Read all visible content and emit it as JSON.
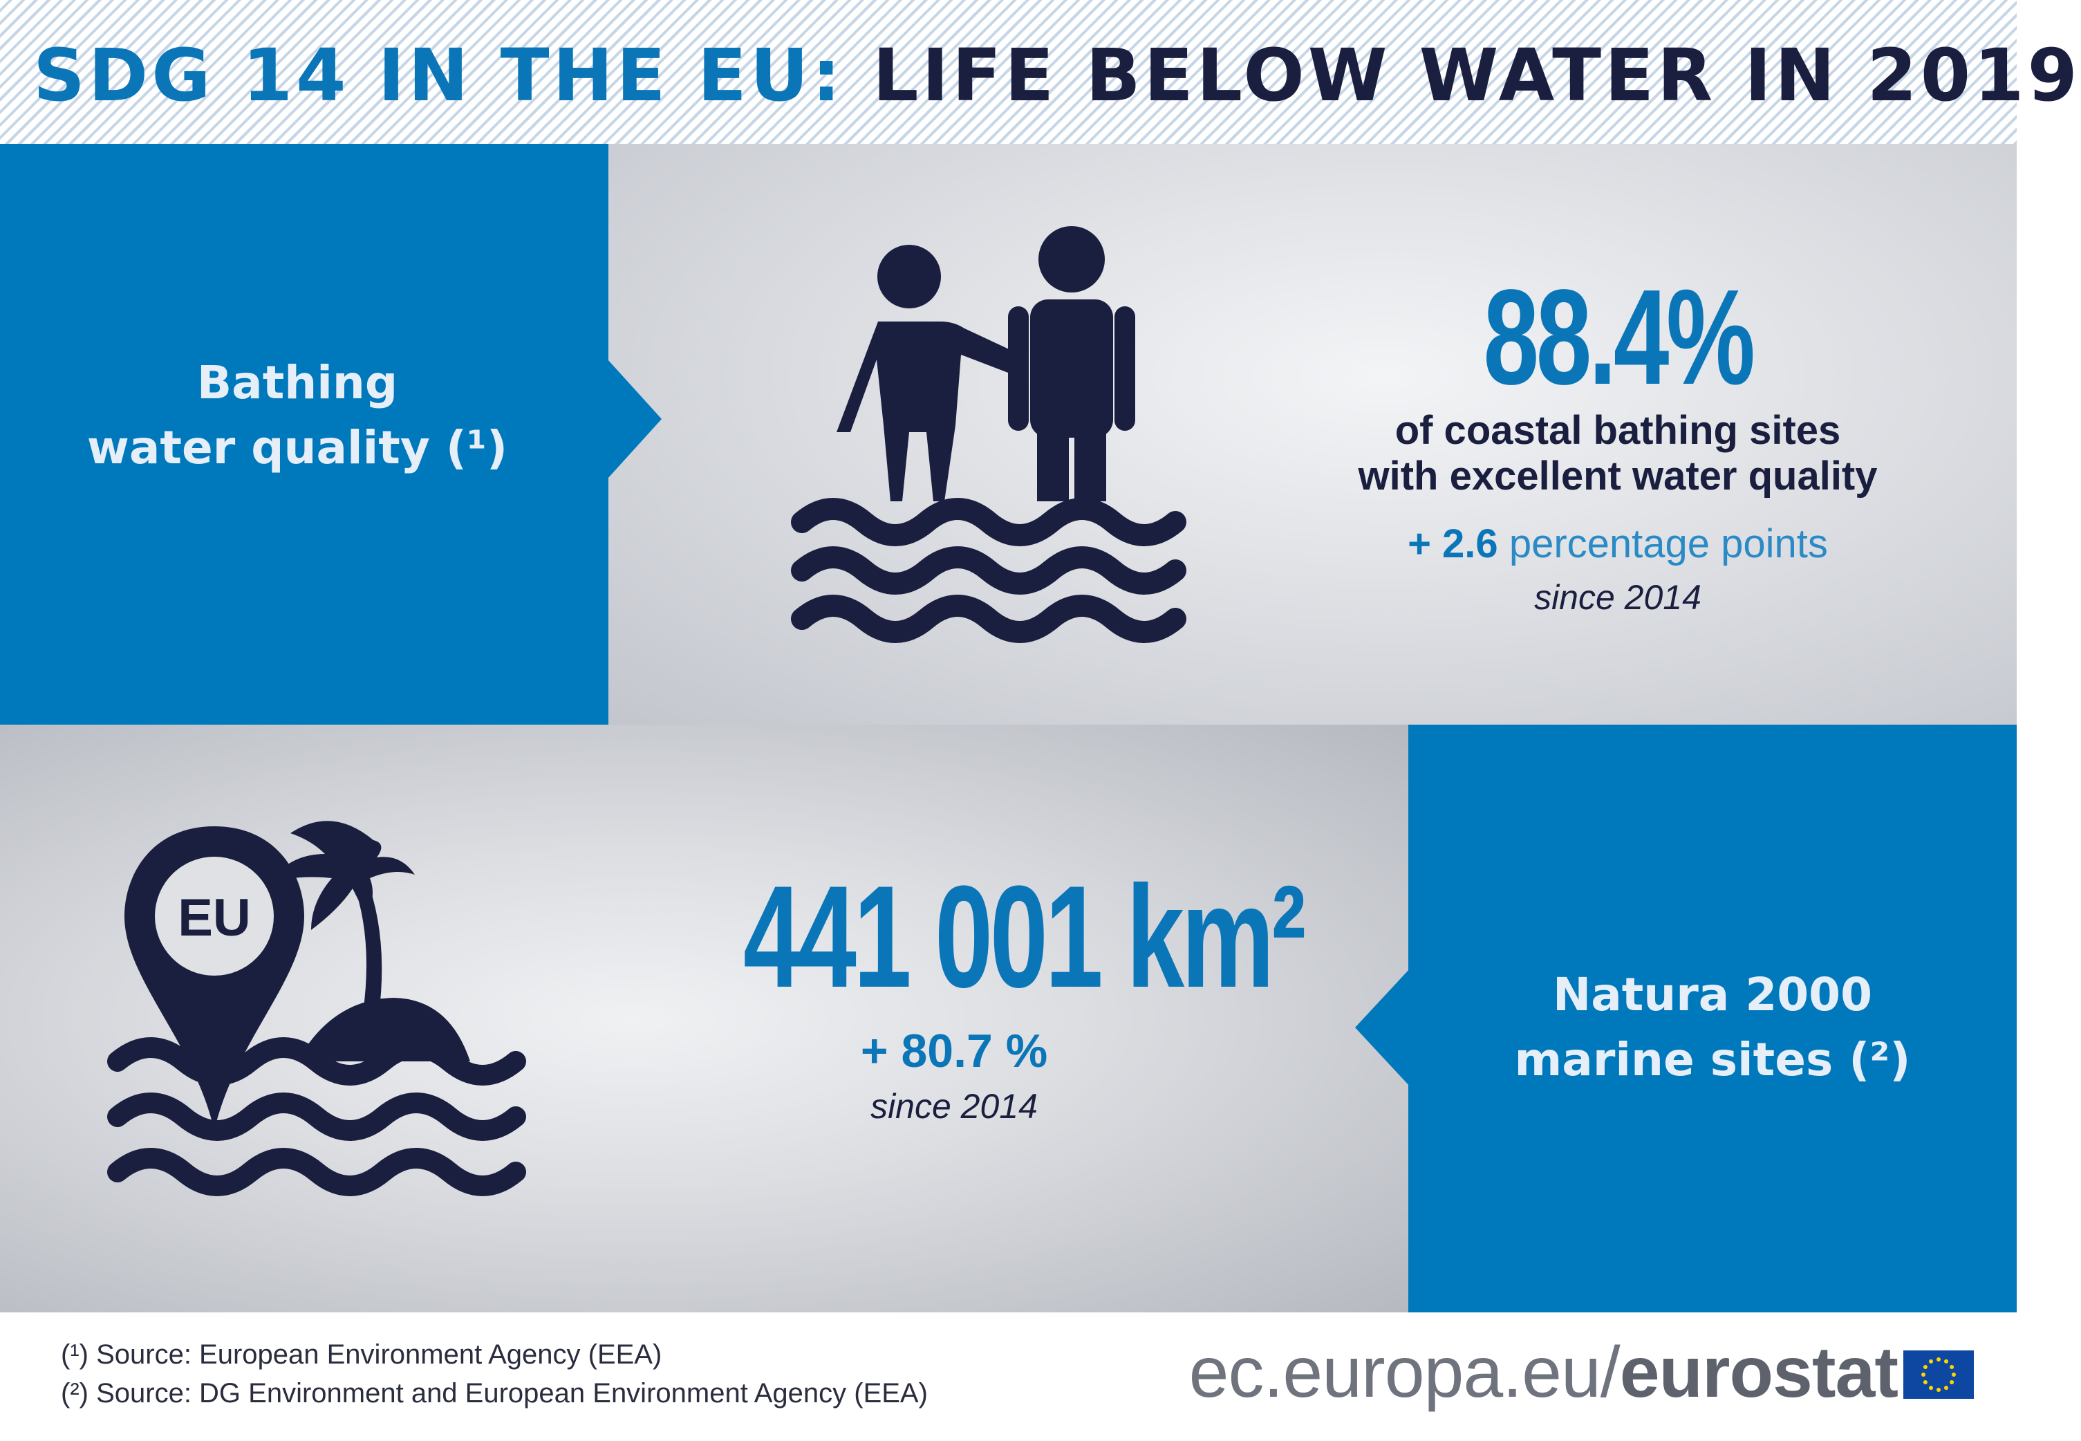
{
  "header": {
    "title_part1": "SDG 14 IN THE EU:",
    "title_part2": "LIFE BELOW WATER IN 2019"
  },
  "colors": {
    "brand_blue": "#0078bc",
    "dark_navy": "#1b1f3f",
    "accent_blue": "#0a76b8"
  },
  "sections": [
    {
      "label_line1": "Bathing",
      "label_line2": "water quality (¹)",
      "icon": "bathers-in-water-icon",
      "value": "88.4%",
      "desc_line1": "of coastal bathing sites",
      "desc_line2": "with excellent water quality",
      "change_value": "+ 2.6",
      "change_unit": "percentage points",
      "since": "since 2014"
    },
    {
      "label_line1": "Natura 2000",
      "label_line2": "marine sites (²)",
      "icon": "eu-location-pin-island-icon",
      "icon_text": "EU",
      "value": "441 001 km²",
      "change": "+ 80.7 %",
      "since": "since 2014"
    }
  ],
  "footer": {
    "note1": "(¹) Source: European Environment Agency (EEA)",
    "note2": "(²) Source: DG Environment and European Environment Agency (EEA)",
    "url_prefix": "ec.europa.eu/",
    "url_brand": "eurostat"
  }
}
